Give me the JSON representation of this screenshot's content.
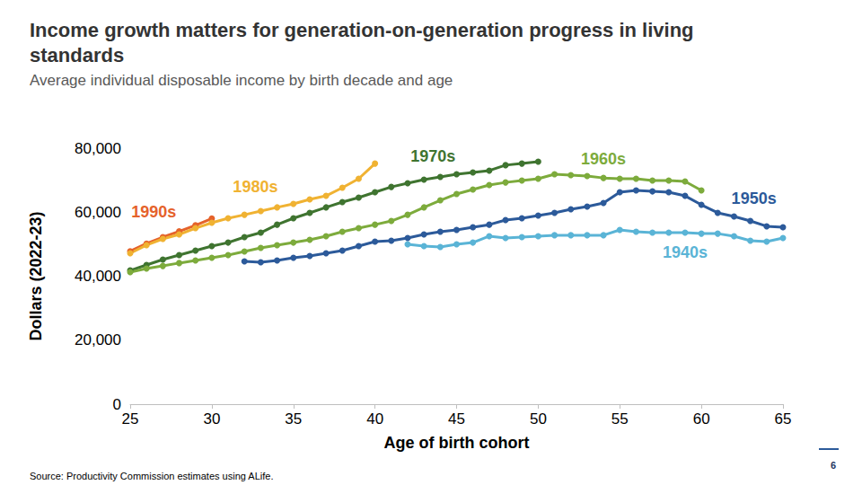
{
  "chart_data": {
    "type": "line",
    "title": "Income growth matters for generation-on-generation progress in living standards",
    "subtitle": "Average individual disposable income by birth decade and age",
    "source": "Source: Productivity Commission estimates using ALife.",
    "page_number": 6,
    "x_label": "Age of birth cohort",
    "y_label": "Dollars (2022-23)",
    "xlim": [
      25,
      65
    ],
    "xticks": [
      25,
      30,
      35,
      40,
      45,
      50,
      55,
      60,
      65
    ],
    "ylim": [
      0,
      80000
    ],
    "yticks": [
      0,
      {
        "value": 20000,
        "label": "20,000"
      },
      {
        "value": 40000,
        "label": "40,000"
      },
      {
        "value": 60000,
        "label": "60,000"
      },
      {
        "value": 80000,
        "label": "80,000"
      }
    ],
    "grid": false,
    "marker": "circle",
    "series": [
      {
        "name": "1990s",
        "color": "#e5622a",
        "x": [
          25,
          26,
          27,
          28,
          29,
          30
        ],
        "values": [
          47800,
          50200,
          52200,
          54000,
          55900,
          58000
        ]
      },
      {
        "name": "1980s",
        "color": "#f0b232",
        "x": [
          25,
          26,
          27,
          28,
          29,
          30,
          31,
          32,
          33,
          34,
          35,
          36,
          37,
          38,
          39,
          40
        ],
        "values": [
          47150,
          49700,
          51650,
          53050,
          55000,
          56700,
          58100,
          59200,
          60350,
          61500,
          62600,
          64000,
          65100,
          67650,
          70450,
          75200
        ]
      },
      {
        "name": "1970s",
        "color": "#3f7430",
        "x": [
          25,
          26,
          27,
          28,
          29,
          30,
          31,
          32,
          33,
          34,
          35,
          36,
          37,
          38,
          39,
          40,
          41,
          42,
          43,
          44,
          45,
          46,
          47,
          48,
          49,
          50
        ],
        "values": [
          41800,
          43500,
          45200,
          46600,
          48000,
          49400,
          50500,
          52200,
          53600,
          56100,
          58100,
          59800,
          61500,
          63150,
          64550,
          66250,
          67900,
          69050,
          70200,
          71000,
          71850,
          72400,
          73000,
          74700,
          75200,
          75800
        ]
      },
      {
        "name": "1960s",
        "color": "#7dab3c",
        "x": [
          25,
          26,
          27,
          28,
          29,
          30,
          31,
          32,
          33,
          34,
          35,
          36,
          37,
          38,
          39,
          40,
          41,
          42,
          43,
          44,
          45,
          46,
          47,
          48,
          49,
          50,
          51,
          52,
          53,
          54,
          55,
          56,
          57,
          58,
          59,
          60
        ],
        "values": [
          41250,
          42400,
          43200,
          44100,
          44900,
          45750,
          46600,
          47700,
          48850,
          49700,
          50500,
          51350,
          52500,
          53900,
          55000,
          56100,
          57250,
          59200,
          61500,
          63700,
          65700,
          67100,
          68500,
          69300,
          69900,
          70450,
          71850,
          71600,
          71300,
          70700,
          70450,
          70450,
          69900,
          69900,
          69600,
          66800
        ]
      },
      {
        "name": "1950s",
        "color": "#2c5a9a",
        "x": [
          32,
          33,
          34,
          35,
          36,
          37,
          38,
          39,
          40,
          41,
          42,
          43,
          44,
          45,
          46,
          47,
          48,
          49,
          50,
          51,
          52,
          53,
          54,
          55,
          56,
          57,
          58,
          59,
          60,
          61,
          62,
          63,
          64,
          65
        ],
        "values": [
          44650,
          44350,
          44900,
          45750,
          46300,
          47150,
          48000,
          49400,
          50800,
          51100,
          51950,
          53050,
          53900,
          54450,
          55300,
          56100,
          57550,
          58100,
          58950,
          59800,
          60900,
          61750,
          62900,
          66250,
          66800,
          66500,
          66250,
          65100,
          62300,
          59800,
          58650,
          57250,
          55600,
          55300
        ]
      },
      {
        "name": "1940s",
        "color": "#5ab4d6",
        "x": [
          42,
          43,
          44,
          45,
          46,
          47,
          48,
          49,
          50,
          51,
          52,
          53,
          54,
          55,
          56,
          57,
          58,
          59,
          60,
          61,
          62,
          63,
          64,
          65
        ],
        "values": [
          49950,
          49400,
          49100,
          49950,
          50500,
          52500,
          51950,
          52200,
          52500,
          52800,
          52800,
          52800,
          52800,
          54450,
          53900,
          53600,
          53600,
          53600,
          53300,
          53300,
          52500,
          51100,
          50800,
          51950
        ]
      }
    ]
  }
}
